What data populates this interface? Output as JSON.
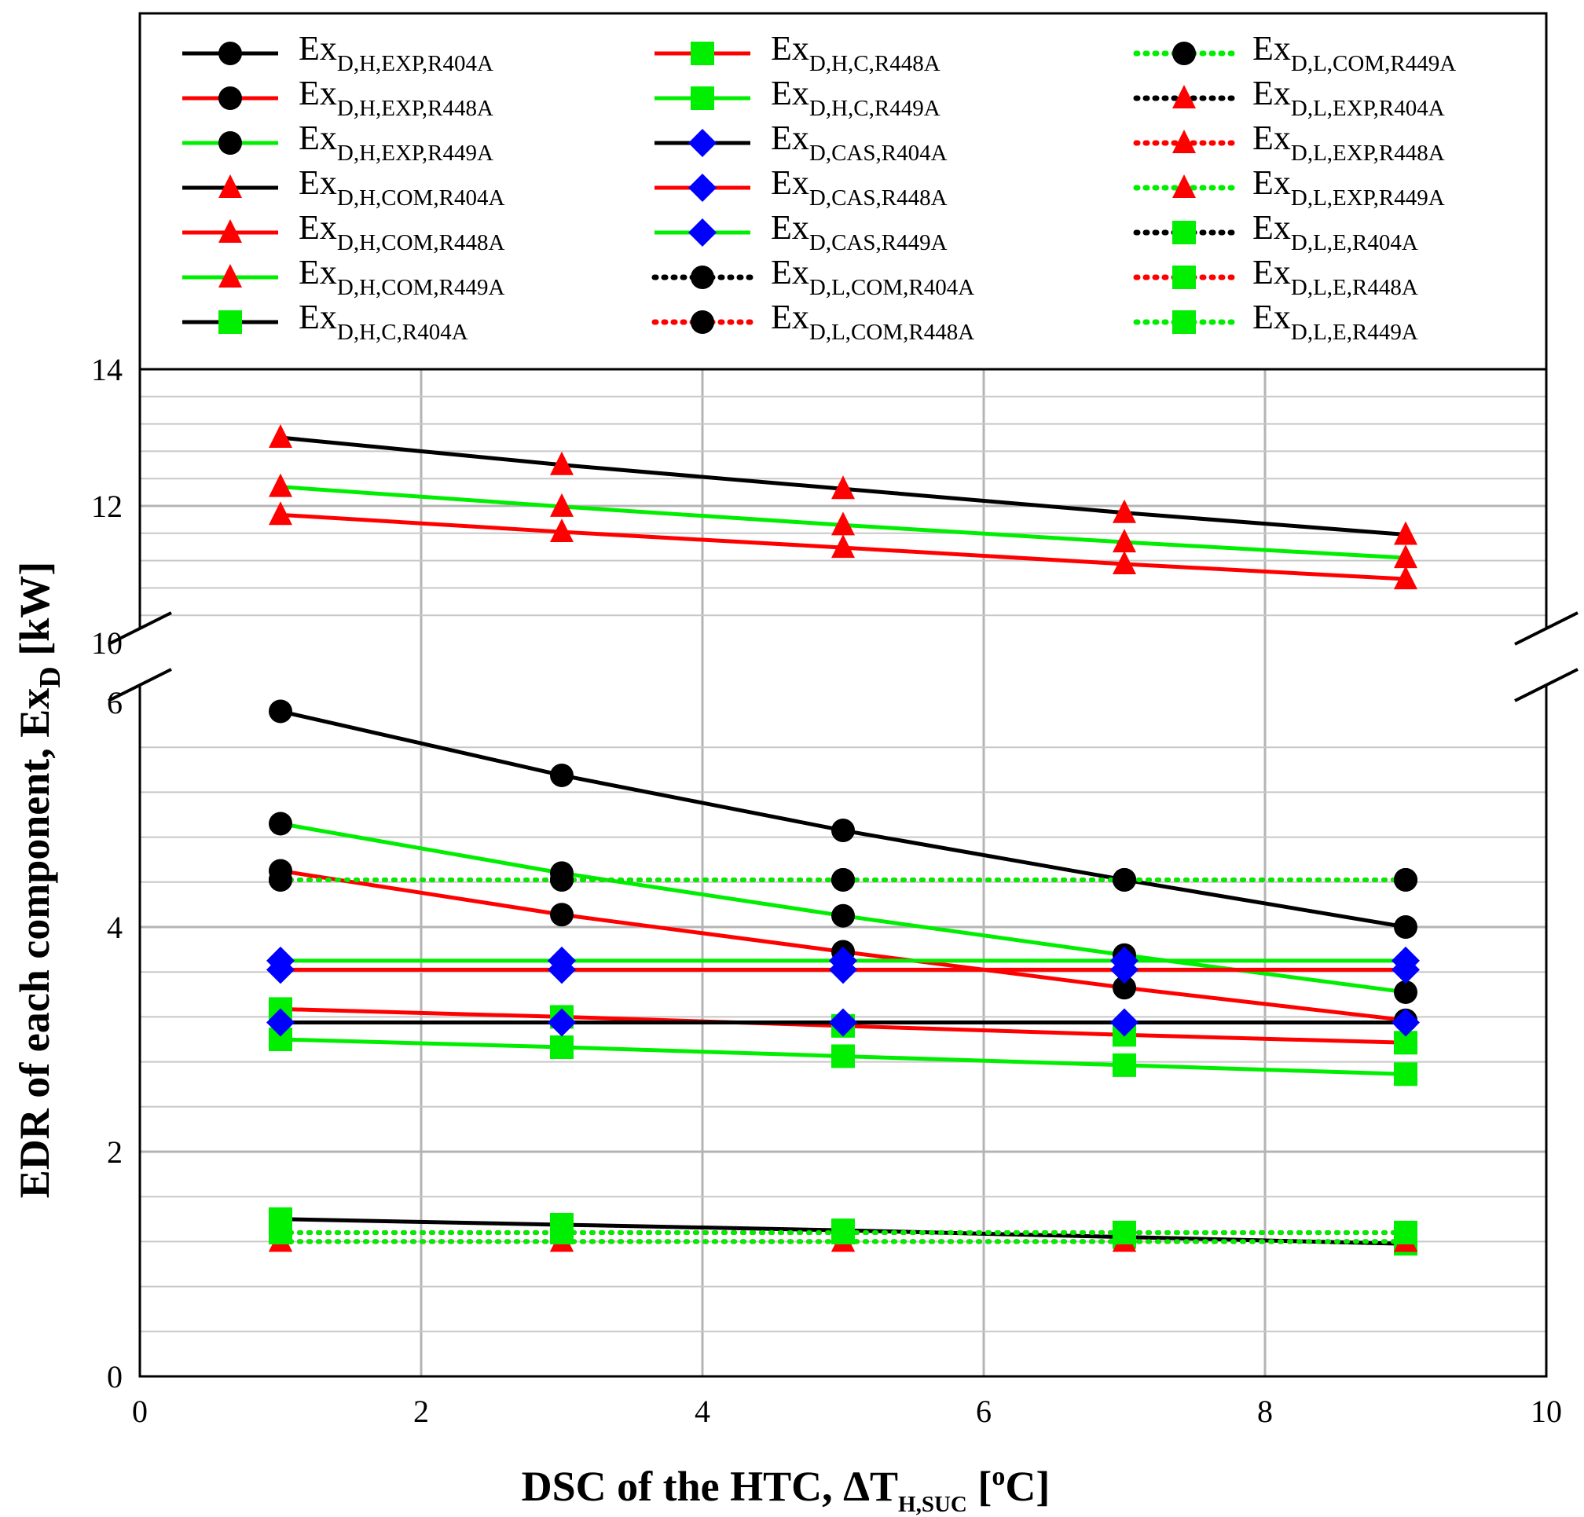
{
  "chart_data": {
    "type": "line",
    "title": "",
    "xlabel": {
      "main": "DSC of the HTC, ΔT",
      "sub": "H,SUC",
      "unit_open": " [",
      "unit_sup": "o",
      "unit_close": "C]"
    },
    "ylabel": {
      "main": "EDR of each component, Ex",
      "sub": "D",
      "unit": " [kW]"
    },
    "xlim": [
      0,
      10
    ],
    "ylim_lower": [
      0,
      6
    ],
    "ylim_upper": [
      10,
      14
    ],
    "axis_break": "between 6 and 10",
    "x_ticks": [
      "0",
      "2",
      "4",
      "6",
      "8",
      "10"
    ],
    "y_ticks_lower": [
      "0",
      "2",
      "4",
      "6"
    ],
    "y_ticks_upper": [
      "10",
      "12",
      "14"
    ],
    "grid": true,
    "legend_position": "top, outside plot",
    "x": [
      1,
      3,
      5,
      7,
      9
    ],
    "series": [
      {
        "name": "Ex",
        "sub": "D,H,EXP,R404A",
        "color": "#000000",
        "dash": "solid",
        "marker": "circle",
        "values": [
          5.92,
          5.35,
          4.86,
          4.42,
          4.0
        ]
      },
      {
        "name": "Ex",
        "sub": "D,H,EXP,R448A",
        "color": "#ff0000",
        "dash": "solid",
        "marker": "circle",
        "values": [
          4.5,
          4.11,
          3.78,
          3.46,
          3.17
        ]
      },
      {
        "name": "Ex",
        "sub": "D,H,EXP,R449A",
        "color": "#00ee00",
        "dash": "solid",
        "marker": "circle",
        "values": [
          4.92,
          4.48,
          4.1,
          3.75,
          3.42
        ]
      },
      {
        "name": "Ex",
        "sub": "D,H,COM,R404A",
        "color": "#000000",
        "dash": "solid",
        "marker": "triangle",
        "values": [
          13.0,
          12.6,
          12.25,
          11.9,
          11.58
        ]
      },
      {
        "name": "Ex",
        "sub": "D,H,COM,R448A",
        "color": "#ff0000",
        "dash": "solid",
        "marker": "triangle",
        "values": [
          11.87,
          11.62,
          11.39,
          11.15,
          10.93
        ]
      },
      {
        "name": "Ex",
        "sub": "D,H,COM,R449A",
        "color": "#00ee00",
        "dash": "solid",
        "marker": "triangle",
        "values": [
          12.28,
          11.99,
          11.72,
          11.47,
          11.24
        ]
      },
      {
        "name": "Ex",
        "sub": "D,H,C,R404A",
        "color": "#000000",
        "dash": "solid",
        "marker": "square",
        "values": [
          1.4,
          1.35,
          1.3,
          1.24,
          1.18
        ]
      },
      {
        "name": "Ex",
        "sub": "D,H,C,R448A",
        "color": "#ff0000",
        "dash": "solid",
        "marker": "square",
        "values": [
          3.27,
          3.2,
          3.12,
          3.04,
          2.97
        ]
      },
      {
        "name": "Ex",
        "sub": "D,H,C,R449A",
        "color": "#00ee00",
        "dash": "solid",
        "marker": "square",
        "values": [
          3.0,
          2.93,
          2.85,
          2.77,
          2.69
        ]
      },
      {
        "name": "Ex",
        "sub": "D,CAS,R404A",
        "color": "#000000",
        "dash": "solid",
        "marker": "diamond",
        "values": [
          3.15,
          3.15,
          3.15,
          3.15,
          3.15
        ]
      },
      {
        "name": "Ex",
        "sub": "D,CAS,R448A",
        "color": "#ff0000",
        "dash": "solid",
        "marker": "diamond",
        "values": [
          3.62,
          3.62,
          3.62,
          3.62,
          3.62
        ]
      },
      {
        "name": "Ex",
        "sub": "D,CAS,R449A",
        "color": "#00ee00",
        "dash": "solid",
        "marker": "diamond",
        "values": [
          3.7,
          3.7,
          3.7,
          3.7,
          3.7
        ]
      },
      {
        "name": "Ex",
        "sub": "D,L,COM,R404A",
        "color": "#000000",
        "dash": "dotted",
        "marker": "circle",
        "values": [
          4.42,
          4.42,
          4.42,
          4.42,
          4.42
        ]
      },
      {
        "name": "Ex",
        "sub": "D,L,COM,R448A",
        "color": "#ff0000",
        "dash": "dotted",
        "marker": "circle",
        "values": [
          4.42,
          4.42,
          4.42,
          4.42,
          4.42
        ]
      },
      {
        "name": "Ex",
        "sub": "D,L,COM,R449A",
        "color": "#00ee00",
        "dash": "dotted",
        "marker": "circle",
        "values": [
          4.42,
          4.42,
          4.42,
          4.42,
          4.42
        ]
      },
      {
        "name": "Ex",
        "sub": "D,L,EXP,R404A",
        "color": "#000000",
        "dash": "dotted",
        "marker": "triangle",
        "values": [
          1.2,
          1.2,
          1.2,
          1.2,
          1.2
        ]
      },
      {
        "name": "Ex",
        "sub": "D,L,EXP,R448A",
        "color": "#ff0000",
        "dash": "dotted",
        "marker": "triangle",
        "values": [
          1.2,
          1.2,
          1.2,
          1.2,
          1.2
        ]
      },
      {
        "name": "Ex",
        "sub": "D,L,EXP,R449A",
        "color": "#00ee00",
        "dash": "dotted",
        "marker": "triangle",
        "values": [
          1.2,
          1.2,
          1.2,
          1.2,
          1.2
        ]
      },
      {
        "name": "Ex",
        "sub": "D,L,E,R404A",
        "color": "#000000",
        "dash": "dotted",
        "marker": "square",
        "values": [
          1.28,
          1.28,
          1.28,
          1.28,
          1.28
        ]
      },
      {
        "name": "Ex",
        "sub": "D,L,E,R448A",
        "color": "#ff0000",
        "dash": "dotted",
        "marker": "square",
        "values": [
          1.28,
          1.28,
          1.28,
          1.28,
          1.28
        ]
      },
      {
        "name": "Ex",
        "sub": "D,L,E,R449A",
        "color": "#00ee00",
        "dash": "dotted",
        "marker": "square",
        "values": [
          1.28,
          1.28,
          1.28,
          1.28,
          1.28
        ]
      }
    ]
  }
}
